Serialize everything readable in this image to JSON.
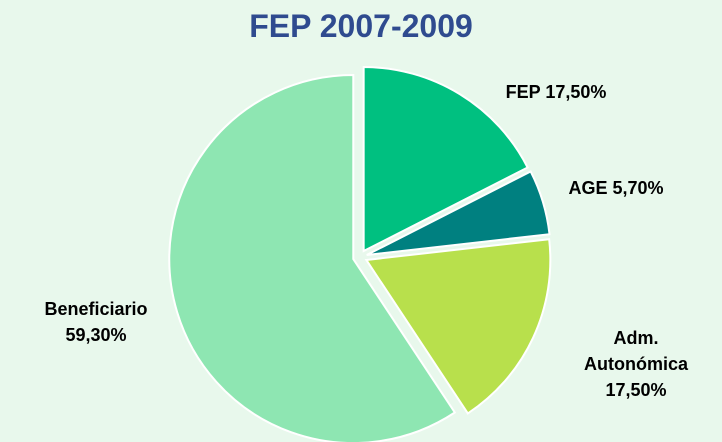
{
  "chart_data": {
    "type": "pie",
    "title": "FEP 2007-2009",
    "categories": [
      "FEP",
      "AGE",
      "Adm. Autonómica",
      "Beneficiario"
    ],
    "values": [
      17.5,
      5.7,
      17.5,
      59.3
    ],
    "value_labels": [
      "17,50%",
      "5,70%",
      "17,50%",
      "59,30%"
    ],
    "colors": [
      "#00c080",
      "#008080",
      "#b8e04c",
      "#8ee6b2"
    ]
  }
}
